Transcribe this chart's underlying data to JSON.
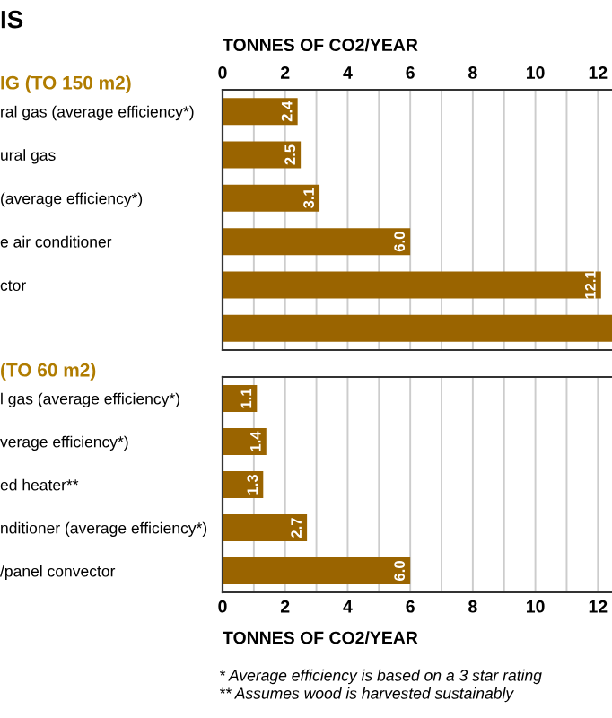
{
  "chart_data": [
    {
      "type": "bar",
      "orientation": "horizontal",
      "title": "IS",
      "subtitle": "IG (TO 150 m2)",
      "x2label": "TONNES OF CO2/YEAR",
      "categories": [
        "ral gas (average efficiency*)",
        "ural gas",
        "(average efficiency*)",
        "e air conditioner",
        "ctor",
        null
      ],
      "values": [
        2.4,
        2.5,
        3.1,
        6.0,
        12.1,
        12.45
      ],
      "value_labels": [
        "2.4",
        "2.5",
        "3.1",
        "6.0",
        "12.1",
        null
      ],
      "color": "#9a6400",
      "x2lim": [
        0,
        12.45
      ],
      "x2ticks": [
        0,
        {
          "value": 1,
          "label": null
        },
        2,
        {
          "value": 3,
          "label": null
        },
        4,
        {
          "value": 5,
          "label": null
        },
        6,
        {
          "value": 7,
          "label": null
        },
        8,
        {
          "value": 9,
          "label": null
        },
        10,
        {
          "value": 11,
          "label": null
        },
        12
      ],
      "grid": "x"
    },
    {
      "type": "bar",
      "orientation": "horizontal",
      "subtitle": "(TO 60 m2)",
      "xlabel": "TONNES OF CO2/YEAR",
      "categories": [
        "l gas (average efficiency*)",
        "verage efficiency*)",
        "ed heater**",
        "nditioner (average efficiency*)",
        "/panel convector"
      ],
      "values": [
        1.1,
        1.4,
        1.3,
        2.7,
        6.0
      ],
      "value_labels": [
        "1.1",
        "1.4",
        "1.3",
        "2.7",
        "6.0"
      ],
      "color": "#9a6400",
      "xlim": [
        0,
        12.45
      ],
      "xticks": [
        0,
        {
          "value": 1,
          "label": null
        },
        2,
        {
          "value": 3,
          "label": null
        },
        4,
        {
          "value": 5,
          "label": null
        },
        6,
        {
          "value": 7,
          "label": null
        },
        8,
        {
          "value": 9,
          "label": null
        },
        10,
        {
          "value": 11,
          "label": null
        },
        12
      ],
      "grid": "x",
      "annotations": [
        "* Average efficiency is based on a 3 star rating",
        "** Assumes wood is harvested sustainably"
      ]
    }
  ]
}
